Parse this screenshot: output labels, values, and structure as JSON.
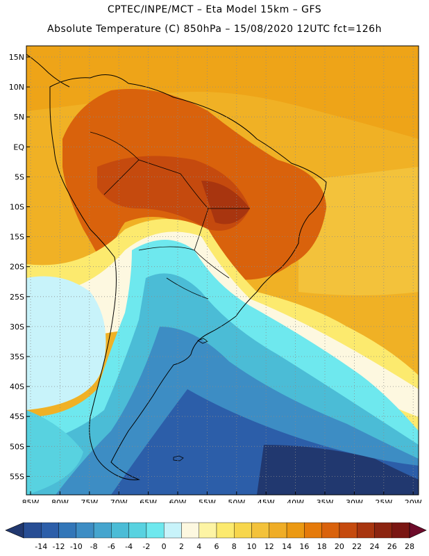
{
  "header": {
    "line1": "CPTEC/INPE/MCT –  Eta Model 15km – GFS",
    "line2": "Absolute Temperature (C) 850hPa – 15/08/2020 12UTC fct=126h"
  },
  "map": {
    "lat_labels": [
      "15N",
      "10N",
      "5N",
      "EQ",
      "5S",
      "10S",
      "15S",
      "20S",
      "25S",
      "30S",
      "35S",
      "40S",
      "45S",
      "50S",
      "55S"
    ],
    "lon_labels": [
      "85W",
      "80W",
      "75W",
      "70W",
      "65W",
      "60W",
      "55W",
      "50W",
      "45W",
      "40W",
      "35W",
      "30W",
      "25W",
      "20W"
    ],
    "gridlines": "dotted"
  },
  "colorbar": {
    "ticks": [
      "-14",
      "-12",
      "-10",
      "-8",
      "-6",
      "-4",
      "-2",
      "0",
      "2",
      "4",
      "6",
      "8",
      "10",
      "12",
      "14",
      "16",
      "18",
      "20",
      "22",
      "24",
      "26",
      "28"
    ],
    "colors": [
      "#21386f",
      "#274d94",
      "#2c5ea9",
      "#3276b8",
      "#3d8dc4",
      "#45a5ce",
      "#4bbcd6",
      "#58d2e0",
      "#6ee8ee",
      "#c8f3fa",
      "#fdf8e0",
      "#fdf4a4",
      "#fcea6e",
      "#f7d64c",
      "#f3c23b",
      "#efad26",
      "#eb9912",
      "#e57a0a",
      "#d9620c",
      "#c54a0e",
      "#a8350f",
      "#8c2410",
      "#7a1612",
      "#6d0b2a"
    ]
  }
}
